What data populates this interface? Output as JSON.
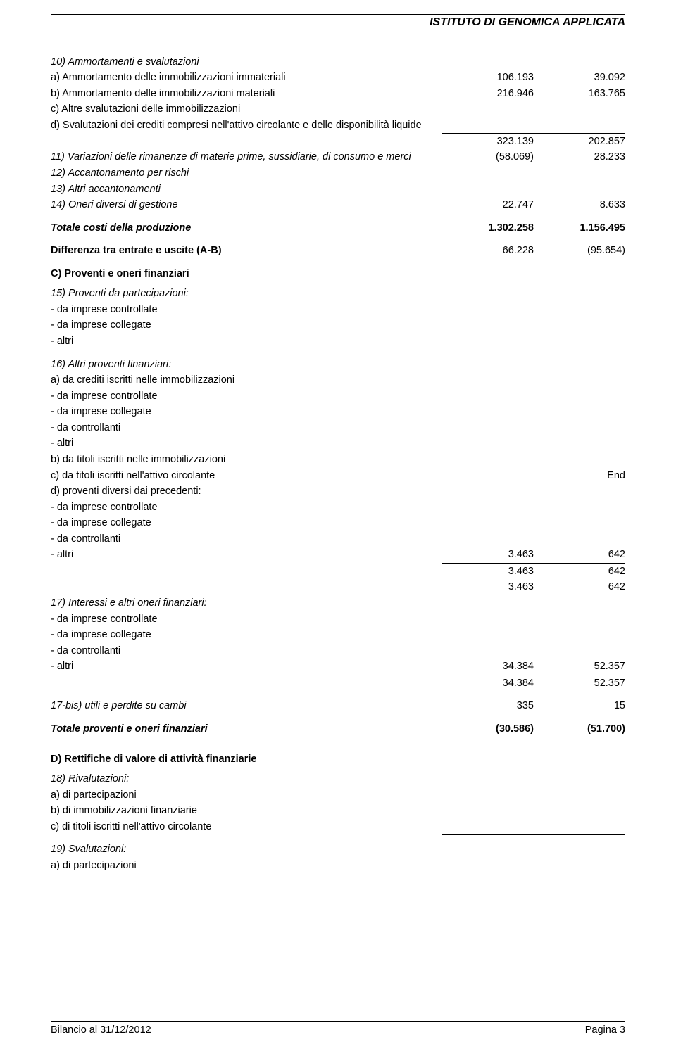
{
  "header": {
    "title": "ISTITUTO DI GENOMICA APPLICATA"
  },
  "footer": {
    "left": "Bilancio al 31/12/2012",
    "right": "Pagina 3"
  },
  "s10": {
    "title": "10) Ammortamenti e svalutazioni",
    "a": {
      "label": "a)  Ammortamento delle immobilizzazioni immateriali",
      "v1": "106.193",
      "v2": "39.092"
    },
    "b": {
      "label": "b)  Ammortamento delle immobilizzazioni materiali",
      "v1": "216.946",
      "v2": "163.765"
    },
    "c": {
      "label": "c)  Altre svalutazioni delle immobilizzazioni"
    },
    "d": {
      "label": "d)  Svalutazioni dei crediti compresi nell'attivo circolante e delle disponibilità liquide"
    },
    "sub": {
      "v1": "323.139",
      "v2": "202.857"
    }
  },
  "s11": {
    "label": "11) Variazioni delle rimanenze di materie prime, sussidiarie, di consumo e merci",
    "v1": "(58.069)",
    "v2": "28.233"
  },
  "s12": {
    "label": "12) Accantonamento per rischi"
  },
  "s13": {
    "label": "13) Altri accantonamenti"
  },
  "s14": {
    "label": "14) Oneri diversi di gestione",
    "v1": "22.747",
    "v2": "8.633"
  },
  "tot_prod": {
    "label": "Totale costi della produzione",
    "v1": "1.302.258",
    "v2": "1.156.495"
  },
  "diff_ab": {
    "label": "Differenza tra entrate e uscite (A-B)",
    "v1": "66.228",
    "v2": "(95.654)"
  },
  "secC": {
    "title": "C) Proventi e oneri finanziari",
    "s15": {
      "label": "15) Proventi da partecipazioni:",
      "a": "- da imprese controllate",
      "b": "- da imprese collegate",
      "c": "- altri"
    },
    "s16": {
      "label": "16) Altri proventi finanziari:",
      "a": {
        "label": "a)  da crediti iscritti nelle immobilizzazioni",
        "l1": "- da imprese controllate",
        "l2": "- da imprese collegate",
        "l3": "- da controllanti",
        "l4": "- altri"
      },
      "b": {
        "label": "b)  da titoli iscritti nelle immobilizzazioni"
      },
      "c": {
        "label": "c)  da titoli iscritti nell'attivo circolante",
        "v2": "End"
      },
      "d": {
        "label": "d)  proventi diversi dai precedenti:",
        "l1": "- da imprese controllate",
        "l2": "- da imprese collegate",
        "l3": "- da controllanti",
        "l4": "- altri",
        "l4v1": "3.463",
        "l4v2": "642"
      },
      "sub1": {
        "v1": "3.463",
        "v2": "642"
      },
      "sub2": {
        "v1": "3.463",
        "v2": "642"
      }
    },
    "s17": {
      "label": "17) Interessi e altri oneri finanziari:",
      "l1": "- da imprese controllate",
      "l2": "- da imprese collegate",
      "l3": "- da controllanti",
      "l4": "- altri",
      "l4v1": "34.384",
      "l4v2": "52.357",
      "sub": {
        "v1": "34.384",
        "v2": "52.357"
      }
    },
    "s17bis": {
      "label": "17-bis) utili e perdite su cambi",
      "v1": "335",
      "v2": "15"
    },
    "total": {
      "label": "Totale proventi e oneri finanziari",
      "v1": "(30.586)",
      "v2": "(51.700)"
    }
  },
  "secD": {
    "title": "D) Rettifiche di valore di attività finanziarie",
    "s18": {
      "label": "18) Rivalutazioni:",
      "a": "a)  di partecipazioni",
      "b": "b)  di immobilizzazioni finanziarie",
      "c": "c)  di titoli iscritti nell'attivo circolante"
    },
    "s19": {
      "label": "19) Svalutazioni:",
      "a": "a)  di partecipazioni"
    }
  }
}
